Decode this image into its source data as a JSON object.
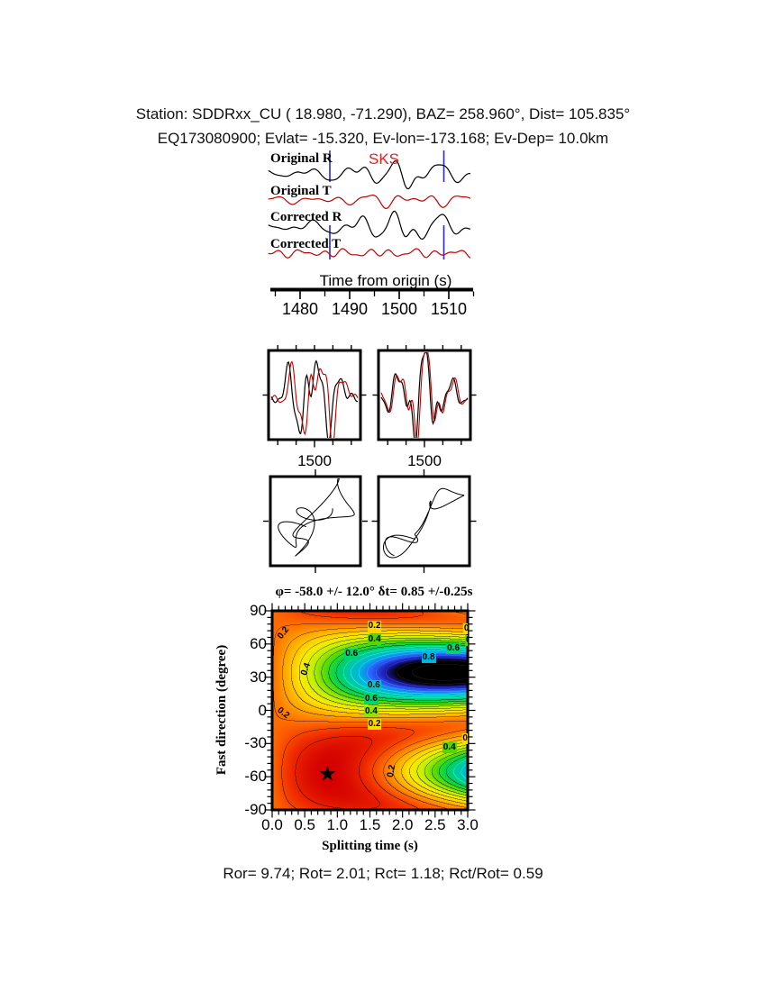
{
  "header": {
    "line1": "Station: SDDRxx_CU (  18.980,  -71.290), BAZ=  258.960°, Dist=  105.835°",
    "line2": "EQ173080900; Evlat= -15.320, Ev-lon=-173.168; Ev-Dep= 10.0km"
  },
  "footer": {
    "stats": "Ror= 9.74; Rot= 2.01; Rct= 1.18; Rct/Rot= 0.59"
  },
  "colors": {
    "trace_black": "#000000",
    "trace_red": "#c00000",
    "window_marker_blue": "#2a2ace",
    "phase_label_red": "#e02020",
    "star_black": "#000000"
  },
  "chart_data": [
    {
      "id": "seismogram-traces",
      "type": "line",
      "phase_label": "SKS",
      "phase_time": 1497,
      "xlabel": "Time from origin (s)",
      "x_range": [
        1473.6,
        1514.5
      ],
      "xticks": [
        1480,
        1490,
        1500,
        1510
      ],
      "xticks_minor": [
        1475,
        1485,
        1495,
        1505,
        1515
      ],
      "window_markers": [
        1486,
        1509
      ],
      "traces": [
        {
          "label": "Original R",
          "color": "#000000",
          "scale": 12,
          "harmonics": [
            [
              8.6,
              1.0,
              5.8
            ],
            [
              5.1,
              0.55,
              2.3
            ],
            [
              3.4,
              0.3,
              0.7
            ],
            [
              14,
              0.45,
              3.6
            ]
          ],
          "env": {
            "t0": 1500,
            "sigma": 9,
            "base": 0.28
          }
        },
        {
          "label": "Original T",
          "color": "#c00000",
          "scale": 5,
          "harmonics": [
            [
              6.2,
              1.0,
              1.9
            ],
            [
              3.8,
              0.6,
              4.4
            ],
            [
              9.5,
              0.7,
              0.2
            ]
          ],
          "env": {
            "t0": 1502,
            "sigma": 11,
            "base": 0.45
          }
        },
        {
          "label": "Corrected R",
          "color": "#000000",
          "scale": 13,
          "harmonics": [
            [
              8.6,
              1.0,
              5.45
            ],
            [
              5.1,
              0.6,
              2.9
            ],
            [
              3.4,
              0.33,
              1.6
            ],
            [
              14,
              0.4,
              3.1
            ]
          ],
          "env": {
            "t0": 1500,
            "sigma": 9,
            "base": 0.28
          }
        },
        {
          "label": "Corrected T",
          "color": "#c00000",
          "scale": 2.6,
          "harmonics": [
            [
              4.6,
              1.0,
              3.3
            ],
            [
              3.1,
              0.8,
              0.9
            ],
            [
              7.5,
              0.6,
              5.1
            ]
          ],
          "env": {
            "t0": 1500,
            "sigma": 30,
            "base": 0.7
          }
        }
      ]
    },
    {
      "id": "fast-slow-compare",
      "type": "line",
      "panels": [
        {
          "tick_label": "1500",
          "black": [
            [
              3.1,
              1.0,
              4.4
            ],
            [
              5.3,
              0.6,
              1.2
            ],
            [
              9.5,
              0.33,
              2.6
            ]
          ],
          "red_shift": 0.045,
          "red_extra": [
            [
              7,
              0.22,
              0.8
            ]
          ],
          "env": {
            "c": 0.47,
            "s": 0.3,
            "base": 0.15
          },
          "scale": 34
        },
        {
          "tick_label": "1500",
          "black": [
            [
              3.3,
              1.0,
              3.6
            ],
            [
              5.9,
              0.5,
              2.0
            ],
            [
              10,
              0.3,
              5.0
            ]
          ],
          "red_shift": 0.018,
          "red_extra": [
            [
              8,
              0.12,
              2.2
            ]
          ],
          "env": {
            "c": 0.45,
            "s": 0.3,
            "base": 0.15
          },
          "scale": 34
        }
      ]
    },
    {
      "id": "particle-motion",
      "type": "scatter",
      "panels": [
        {
          "name": "original-particle-motion",
          "shared": [
            [
              1.5,
              0.76,
              4.2
            ]
          ],
          "x_own": [
            [
              2.5,
              0.43,
              2.57
            ],
            [
              6,
              0.3,
              2.7
            ]
          ],
          "y_own": [
            [
              2.5,
              0.43,
              1.0
            ],
            [
              5,
              0.3,
              0.4
            ]
          ],
          "scale": 34
        },
        {
          "name": "corrected-particle-motion",
          "shared": [
            [
              1.2,
              0.92,
              3.9
            ]
          ],
          "x_own": [
            [
              3.5,
              0.3,
              2.17
            ],
            [
              6,
              0.12,
              1.1
            ]
          ],
          "y_own": [
            [
              3.5,
              0.3,
              0.6
            ],
            [
              7,
              0.12,
              4.8
            ]
          ],
          "scale": 34
        }
      ]
    },
    {
      "id": "splitting-misfit-map",
      "type": "heatmap",
      "title": "φ= -58.0 +/- 12.0° δt= 0.85 +/-0.25s",
      "xlabel": "Splitting time (s)",
      "ylabel": "Fast direction (degree)",
      "x_range": [
        0.0,
        3.0
      ],
      "y_range": [
        -90,
        90
      ],
      "xticks": [
        "0.0",
        "0.5",
        "1.0",
        "1.5",
        "2.0",
        "2.5",
        "3.0"
      ],
      "xtick_minor_step": 0.1,
      "yticks": [
        "90",
        "60",
        "30",
        "0",
        "-30",
        "-60",
        "-90"
      ],
      "ytick_minor_step": 6,
      "best_phi": -58.0,
      "best_phi_err": 12.0,
      "best_dt": 0.85,
      "best_dt_err": 0.25,
      "star": {
        "dt": 0.85,
        "phi": -58
      },
      "contour_interval": 0.05,
      "synthesis": {
        "phi0_deg": -58,
        "dt0": 0.85,
        "radial_az_deg": 78.96,
        "wavelet_period": 7.4,
        "wavelet_sigma": 5.2,
        "sample_dt": 0.15,
        "t_span": 20,
        "grid_nx": 91,
        "grid_ny": 91
      },
      "palette": [
        [
          0.0,
          "#d40000"
        ],
        [
          0.07,
          "#f02c00"
        ],
        [
          0.15,
          "#ff7000"
        ],
        [
          0.22,
          "#ffb000"
        ],
        [
          0.3,
          "#ffe800"
        ],
        [
          0.38,
          "#c6f000"
        ],
        [
          0.46,
          "#64dc00"
        ],
        [
          0.54,
          "#00d450"
        ],
        [
          0.62,
          "#00c8a0"
        ],
        [
          0.7,
          "#00b4dc"
        ],
        [
          0.77,
          "#2864ff"
        ],
        [
          0.84,
          "#1e1eb4"
        ],
        [
          0.9,
          "#000000"
        ],
        [
          1.0,
          "#000000"
        ]
      ],
      "contour_labels": [
        {
          "text": "0.2",
          "dt": 1.57,
          "phi": 76,
          "bg": "#ffd800"
        },
        {
          "text": "0.4",
          "dt": 1.57,
          "phi": 64,
          "bg": "#52d800"
        },
        {
          "text": "0.",
          "dt": 3.0,
          "phi": 74,
          "bg": "#ffd800"
        },
        {
          "text": "0",
          "dt": 3.01,
          "phi": 63,
          "bg": "#52d800"
        },
        {
          "text": "0.6",
          "dt": 2.78,
          "phi": 56,
          "bg": "#00d46e"
        },
        {
          "text": "0.8",
          "dt": 2.4,
          "phi": 48,
          "bg": "#00b4e0"
        },
        {
          "text": "0.6",
          "dt": 1.22,
          "phi": 51,
          "bg": "#00d46e"
        },
        {
          "text": "0.6",
          "dt": 1.56,
          "phi": 22,
          "bg": "#00c8c8"
        },
        {
          "text": "0.6",
          "dt": 1.52,
          "phi": 10,
          "bg": "#00d46e"
        },
        {
          "text": "0.4",
          "dt": 1.52,
          "phi": -1,
          "bg": "#8ce600"
        },
        {
          "text": "0.2",
          "dt": 1.57,
          "phi": -13,
          "bg": "#ffd800"
        },
        {
          "text": "0.4",
          "dt": 2.72,
          "phi": -34,
          "bg": "#52d800"
        },
        {
          "text": "0.",
          "dt": 2.98,
          "phi": -26,
          "bg": "#ffd800"
        },
        {
          "text": "0.2",
          "dt": 0.18,
          "phi": 70,
          "rot": -52
        },
        {
          "text": "0.4",
          "dt": 0.52,
          "phi": 37,
          "rot": -70
        },
        {
          "text": "0.2",
          "dt": 0.16,
          "phi": -3,
          "rot": 38
        },
        {
          "text": "0.2",
          "dt": 1.84,
          "phi": -55,
          "rot": -80
        }
      ]
    }
  ]
}
